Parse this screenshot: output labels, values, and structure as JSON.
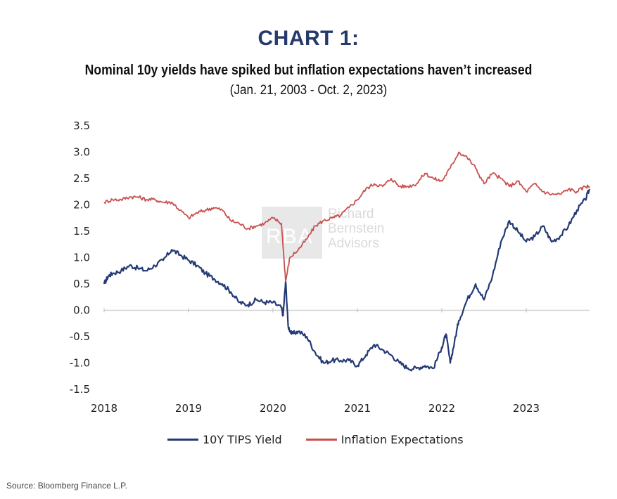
{
  "header": {
    "title": "CHART 1:",
    "subtitle": "Nominal 10y yields have spiked but inflation expectations haven’t increased",
    "date_range": "(Jan. 21, 2003 - Oct. 2, 2023)"
  },
  "watermark": {
    "logo_text": "RBA",
    "name_lines": [
      "Richard",
      "Bernstein",
      "Advisors"
    ]
  },
  "source": "Source: Bloomberg Finance L.P.",
  "colors": {
    "tips": "#243a74",
    "inflation": "#c9504f",
    "title": "#263a6b"
  },
  "chart_data": {
    "type": "line",
    "title": "CHART 1:",
    "subtitle": "Nominal 10y yields have spiked but inflation expectations haven’t increased",
    "xlabel": "",
    "ylabel": "",
    "xlim": [
      2018.0,
      2023.75
    ],
    "ylim": [
      -1.5,
      3.5
    ],
    "xticks": [
      "2018",
      "2019",
      "2020",
      "2021",
      "2022",
      "2023"
    ],
    "yticks": [
      "3.5",
      "3.0",
      "2.5",
      "2.0",
      "1.5",
      "1.0",
      "0.5",
      "0.0",
      "-0.5",
      "-1.0",
      "-1.5"
    ],
    "grid": false,
    "legend_position": "bottom",
    "series": [
      {
        "name": "10Y TIPS Yield",
        "color": "#243a74",
        "points": [
          [
            2018.0,
            0.5
          ],
          [
            2018.05,
            0.65
          ],
          [
            2018.1,
            0.7
          ],
          [
            2018.2,
            0.75
          ],
          [
            2018.3,
            0.85
          ],
          [
            2018.4,
            0.8
          ],
          [
            2018.5,
            0.75
          ],
          [
            2018.6,
            0.85
          ],
          [
            2018.7,
            0.95
          ],
          [
            2018.8,
            1.15
          ],
          [
            2018.9,
            1.05
          ],
          [
            2019.0,
            0.95
          ],
          [
            2019.1,
            0.85
          ],
          [
            2019.2,
            0.7
          ],
          [
            2019.3,
            0.6
          ],
          [
            2019.4,
            0.5
          ],
          [
            2019.5,
            0.35
          ],
          [
            2019.6,
            0.15
          ],
          [
            2019.7,
            0.1
          ],
          [
            2019.8,
            0.2
          ],
          [
            2019.9,
            0.15
          ],
          [
            2020.0,
            0.15
          ],
          [
            2020.1,
            0.05
          ],
          [
            2020.12,
            -0.1
          ],
          [
            2020.15,
            0.55
          ],
          [
            2020.18,
            -0.3
          ],
          [
            2020.22,
            -0.45
          ],
          [
            2020.3,
            -0.4
          ],
          [
            2020.4,
            -0.5
          ],
          [
            2020.5,
            -0.8
          ],
          [
            2020.6,
            -1.0
          ],
          [
            2020.7,
            -0.95
          ],
          [
            2020.8,
            -0.95
          ],
          [
            2020.9,
            -0.95
          ],
          [
            2021.0,
            -1.05
          ],
          [
            2021.1,
            -0.85
          ],
          [
            2021.2,
            -0.65
          ],
          [
            2021.3,
            -0.75
          ],
          [
            2021.4,
            -0.85
          ],
          [
            2021.5,
            -1.0
          ],
          [
            2021.6,
            -1.1
          ],
          [
            2021.7,
            -1.1
          ],
          [
            2021.8,
            -1.05
          ],
          [
            2021.9,
            -1.1
          ],
          [
            2022.0,
            -0.7
          ],
          [
            2022.05,
            -0.45
          ],
          [
            2022.1,
            -1.0
          ],
          [
            2022.15,
            -0.6
          ],
          [
            2022.2,
            -0.2
          ],
          [
            2022.3,
            0.2
          ],
          [
            2022.4,
            0.5
          ],
          [
            2022.5,
            0.2
          ],
          [
            2022.6,
            0.65
          ],
          [
            2022.7,
            1.3
          ],
          [
            2022.8,
            1.7
          ],
          [
            2022.9,
            1.5
          ],
          [
            2023.0,
            1.3
          ],
          [
            2023.1,
            1.4
          ],
          [
            2023.2,
            1.6
          ],
          [
            2023.3,
            1.3
          ],
          [
            2023.4,
            1.4
          ],
          [
            2023.5,
            1.6
          ],
          [
            2023.6,
            1.9
          ],
          [
            2023.7,
            2.1
          ],
          [
            2023.75,
            2.3
          ]
        ]
      },
      {
        "name": "Inflation Expectations",
        "color": "#c9504f",
        "points": [
          [
            2018.0,
            2.05
          ],
          [
            2018.1,
            2.1
          ],
          [
            2018.2,
            2.1
          ],
          [
            2018.3,
            2.15
          ],
          [
            2018.4,
            2.15
          ],
          [
            2018.5,
            2.1
          ],
          [
            2018.6,
            2.1
          ],
          [
            2018.7,
            2.05
          ],
          [
            2018.8,
            2.05
          ],
          [
            2018.9,
            1.9
          ],
          [
            2019.0,
            1.75
          ],
          [
            2019.1,
            1.85
          ],
          [
            2019.2,
            1.9
          ],
          [
            2019.3,
            1.95
          ],
          [
            2019.4,
            1.9
          ],
          [
            2019.5,
            1.7
          ],
          [
            2019.6,
            1.65
          ],
          [
            2019.7,
            1.55
          ],
          [
            2019.8,
            1.6
          ],
          [
            2019.9,
            1.65
          ],
          [
            2020.0,
            1.75
          ],
          [
            2020.1,
            1.65
          ],
          [
            2020.15,
            0.55
          ],
          [
            2020.2,
            1.0
          ],
          [
            2020.3,
            1.15
          ],
          [
            2020.4,
            1.35
          ],
          [
            2020.5,
            1.6
          ],
          [
            2020.6,
            1.7
          ],
          [
            2020.7,
            1.75
          ],
          [
            2020.8,
            1.8
          ],
          [
            2020.9,
            1.95
          ],
          [
            2021.0,
            2.1
          ],
          [
            2021.1,
            2.3
          ],
          [
            2021.2,
            2.4
          ],
          [
            2021.3,
            2.35
          ],
          [
            2021.4,
            2.5
          ],
          [
            2021.5,
            2.35
          ],
          [
            2021.6,
            2.35
          ],
          [
            2021.7,
            2.4
          ],
          [
            2021.8,
            2.6
          ],
          [
            2021.9,
            2.5
          ],
          [
            2022.0,
            2.45
          ],
          [
            2022.1,
            2.7
          ],
          [
            2022.2,
            3.0
          ],
          [
            2022.3,
            2.9
          ],
          [
            2022.4,
            2.7
          ],
          [
            2022.5,
            2.4
          ],
          [
            2022.6,
            2.6
          ],
          [
            2022.7,
            2.5
          ],
          [
            2022.8,
            2.35
          ],
          [
            2022.9,
            2.45
          ],
          [
            2023.0,
            2.25
          ],
          [
            2023.1,
            2.4
          ],
          [
            2023.2,
            2.25
          ],
          [
            2023.3,
            2.2
          ],
          [
            2023.4,
            2.2
          ],
          [
            2023.5,
            2.3
          ],
          [
            2023.6,
            2.25
          ],
          [
            2023.7,
            2.35
          ],
          [
            2023.75,
            2.35
          ]
        ]
      }
    ]
  }
}
